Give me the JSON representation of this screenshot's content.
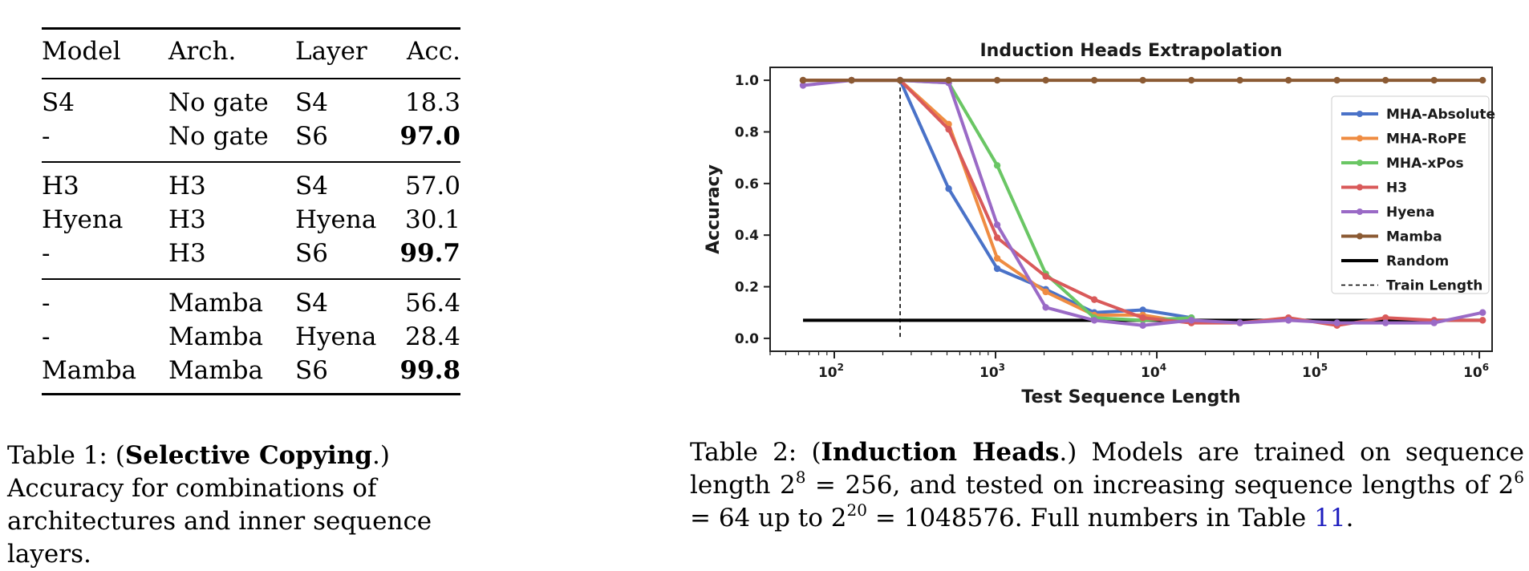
{
  "table1": {
    "headers": [
      "Model",
      "Arch.",
      "Layer",
      "Acc."
    ],
    "groups": [
      [
        {
          "model": "S4",
          "arch": "No gate",
          "layer": "S4",
          "acc": "18.3",
          "bold": false
        },
        {
          "model": "-",
          "arch": "No gate",
          "layer": "S6",
          "acc": "97.0",
          "bold": true
        }
      ],
      [
        {
          "model": "H3",
          "arch": "H3",
          "layer": "S4",
          "acc": "57.0",
          "bold": false
        },
        {
          "model": "Hyena",
          "arch": "H3",
          "layer": "Hyena",
          "acc": "30.1",
          "bold": false
        },
        {
          "model": "-",
          "arch": "H3",
          "layer": "S6",
          "acc": "99.7",
          "bold": true
        }
      ],
      [
        {
          "model": "-",
          "arch": "Mamba",
          "layer": "S4",
          "acc": "56.4",
          "bold": false
        },
        {
          "model": "-",
          "arch": "Mamba",
          "layer": "Hyena",
          "acc": "28.4",
          "bold": false
        },
        {
          "model": "Mamba",
          "arch": "Mamba",
          "layer": "S6",
          "acc": "99.8",
          "bold": true
        }
      ]
    ]
  },
  "caption1": {
    "prefix": "Table 1: (",
    "bold": "Selective Copying",
    "suffix": ".)",
    "body": "Accuracy for combinations of architectures and inner sequence layers."
  },
  "caption2": {
    "prefix": "Table 2: (",
    "bold": "Induction Heads",
    "mid": ".)  Models are trained on sequence length ",
    "line2a": " = 256, and tested on increasing sequence lengths of ",
    "line2b": " = 64 up to ",
    "line3": " = 1048576. Full numbers in Table ",
    "link": "11",
    "end": ".",
    "sup_base": "2",
    "sup_8": "8",
    "sup_6": "6",
    "sup_20": "20"
  },
  "chart_data": {
    "type": "line",
    "title": "Induction Heads Extrapolation",
    "xlabel": "Test Sequence Length",
    "ylabel": "Accuracy",
    "xscale": "log2",
    "xlim": [
      40,
      1200000
    ],
    "ylim": [
      -0.05,
      1.05
    ],
    "x_ticks": [
      {
        "base": "10",
        "exp": "2",
        "value": 100
      },
      {
        "base": "10",
        "exp": "3",
        "value": 1000
      },
      {
        "base": "10",
        "exp": "4",
        "value": 10000
      },
      {
        "base": "10",
        "exp": "5",
        "value": 100000
      },
      {
        "base": "10",
        "exp": "6",
        "value": 1000000
      }
    ],
    "y_ticks": [
      "0.0",
      "0.2",
      "0.4",
      "0.6",
      "0.8",
      "1.0"
    ],
    "train_length": 256,
    "random_level": 0.07,
    "legend_position": "right",
    "series": [
      {
        "name": "MHA-Absolute",
        "color": "#4a72c8",
        "x": [
          64,
          128,
          256,
          512,
          1024,
          2048,
          4096,
          8192,
          16384
        ],
        "y": [
          1.0,
          1.0,
          1.0,
          0.58,
          0.27,
          0.19,
          0.1,
          0.11,
          0.08
        ]
      },
      {
        "name": "MHA-RoPE",
        "color": "#ef8c42",
        "x": [
          64,
          128,
          256,
          512,
          1024,
          2048,
          4096,
          8192,
          16384
        ],
        "y": [
          1.0,
          1.0,
          1.0,
          0.83,
          0.31,
          0.18,
          0.09,
          0.09,
          0.06
        ]
      },
      {
        "name": "MHA-xPos",
        "color": "#6ac664",
        "x": [
          64,
          128,
          256,
          512,
          1024,
          2048,
          4096,
          8192,
          16384
        ],
        "y": [
          1.0,
          1.0,
          1.0,
          0.99,
          0.67,
          0.25,
          0.08,
          0.07,
          0.08
        ]
      },
      {
        "name": "H3",
        "color": "#d95a5a",
        "x": [
          64,
          128,
          256,
          512,
          1024,
          2048,
          4096,
          8192,
          16384,
          32768,
          65536,
          131072,
          262144,
          524288,
          1048576
        ],
        "y": [
          1.0,
          1.0,
          1.0,
          0.81,
          0.39,
          0.24,
          0.15,
          0.08,
          0.06,
          0.06,
          0.08,
          0.05,
          0.08,
          0.07,
          0.07
        ]
      },
      {
        "name": "Hyena",
        "color": "#9a6ac6",
        "x": [
          64,
          128,
          256,
          512,
          1024,
          2048,
          4096,
          8192,
          16384,
          32768,
          65536,
          131072,
          262144,
          524288,
          1048576
        ],
        "y": [
          0.98,
          1.0,
          1.0,
          0.99,
          0.44,
          0.12,
          0.07,
          0.05,
          0.07,
          0.06,
          0.07,
          0.06,
          0.06,
          0.06,
          0.1
        ]
      },
      {
        "name": "Mamba",
        "color": "#8b5a33",
        "x": [
          64,
          128,
          256,
          512,
          1024,
          2048,
          4096,
          8192,
          16384,
          32768,
          65536,
          131072,
          262144,
          524288,
          1048576
        ],
        "y": [
          1.0,
          1.0,
          1.0,
          1.0,
          1.0,
          1.0,
          1.0,
          1.0,
          1.0,
          1.0,
          1.0,
          1.0,
          1.0,
          1.0,
          1.0
        ]
      }
    ],
    "legend_extra": [
      {
        "name": "Random",
        "style": "solid-black"
      },
      {
        "name": "Train Length",
        "style": "dashed-black"
      }
    ]
  }
}
